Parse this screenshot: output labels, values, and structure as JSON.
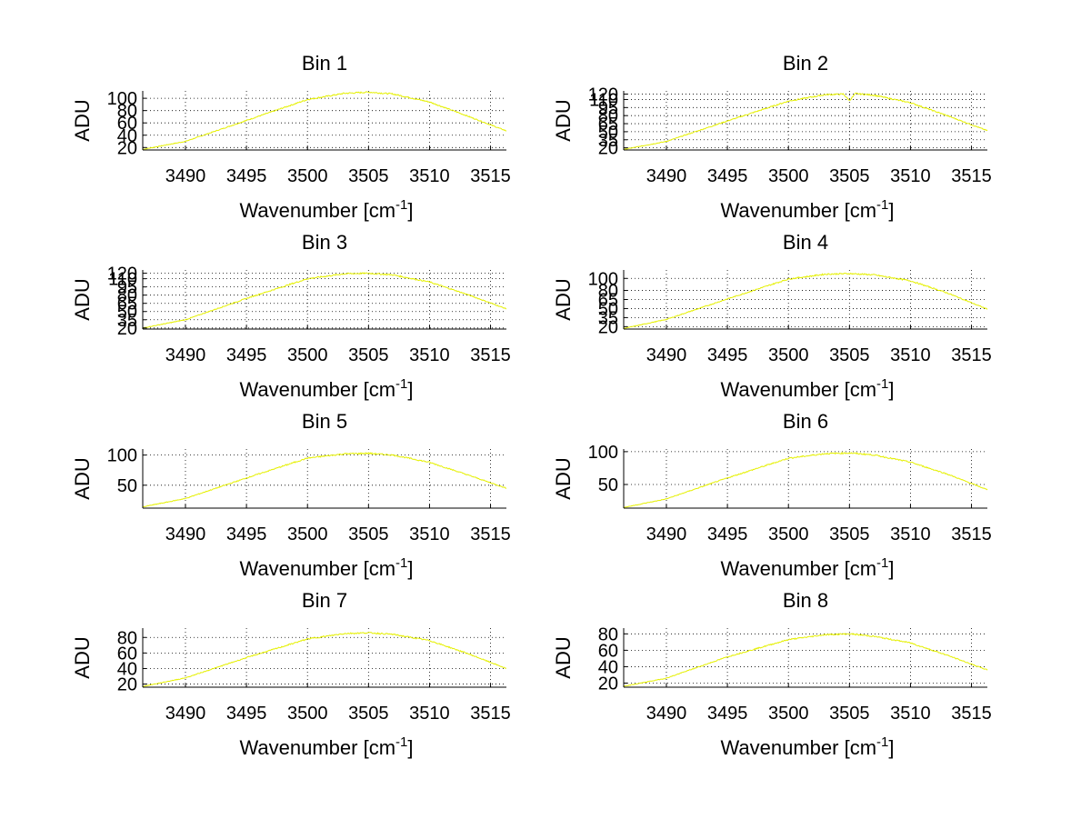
{
  "chart_data": [
    {
      "type": "line",
      "title": "Bin 1",
      "xlabel": "Wavenumber [cm",
      "xlabel_sup": "-1",
      "xlabel_end": "]",
      "ylabel": "ADU",
      "xlim": [
        3486.5,
        3516.3
      ],
      "ylim": [
        16,
        112
      ],
      "xticks": [
        3490,
        3495,
        3500,
        3505,
        3510,
        3515
      ],
      "yticks": [
        20,
        40,
        60,
        80,
        100
      ],
      "series": [
        {
          "x": [
            3486.5,
            3490,
            3495,
            3500,
            3503,
            3505,
            3507,
            3510,
            3513,
            3516.3
          ],
          "y": [
            17,
            30,
            64,
            98,
            108,
            110,
            107,
            94,
            72,
            47
          ]
        }
      ]
    },
    {
      "type": "line",
      "title": "Bin 2",
      "xlabel": "Wavenumber [cm",
      "xlabel_sup": "-1",
      "xlabel_end": "]",
      "ylabel": "ADU",
      "xlim": [
        3486.5,
        3516.3
      ],
      "ylim": [
        16,
        126
      ],
      "xticks": [
        3490,
        3495,
        3500,
        3505,
        3510,
        3515
      ],
      "yticks": [
        20,
        35,
        50,
        65,
        80,
        95,
        110,
        120
      ],
      "series": [
        {
          "x": [
            3486.5,
            3490,
            3495,
            3500,
            3503,
            3504.5,
            3505,
            3505.5,
            3507,
            3510,
            3513,
            3516.3
          ],
          "y": [
            17,
            32,
            70,
            107,
            119,
            120,
            108,
            121,
            118,
            104,
            80,
            52
          ]
        }
      ]
    },
    {
      "type": "line",
      "title": "Bin 3",
      "xlabel": "Wavenumber [cm",
      "xlabel_sup": "-1",
      "xlabel_end": "]",
      "ylabel": "ADU",
      "xlim": [
        3486.5,
        3516.3
      ],
      "ylim": [
        18,
        126
      ],
      "xticks": [
        3490,
        3495,
        3500,
        3505,
        3510,
        3515
      ],
      "yticks": [
        20,
        35,
        50,
        65,
        80,
        95,
        110,
        120
      ],
      "series": [
        {
          "x": [
            3486.5,
            3490,
            3495,
            3500,
            3503,
            3505,
            3507,
            3510,
            3513,
            3516.3
          ],
          "y": [
            20,
            35,
            74,
            110,
            119,
            120,
            117,
            104,
            82,
            55
          ]
        }
      ]
    },
    {
      "type": "line",
      "title": "Bin 4",
      "xlabel": "Wavenumber [cm",
      "xlabel_sup": "-1",
      "xlabel_end": "]",
      "ylabel": "ADU",
      "xlim": [
        3486.5,
        3516.3
      ],
      "ylim": [
        16,
        114
      ],
      "xticks": [
        3490,
        3495,
        3500,
        3505,
        3510,
        3515
      ],
      "yticks": [
        20,
        35,
        50,
        65,
        80,
        100
      ],
      "series": [
        {
          "x": [
            3486.5,
            3490,
            3495,
            3500,
            3503,
            3505,
            3507,
            3510,
            3513,
            3516.3
          ],
          "y": [
            17,
            32,
            66,
            99,
            107,
            108,
            106,
            96,
            76,
            49
          ]
        }
      ]
    },
    {
      "type": "line",
      "title": "Bin 5",
      "xlabel": "Wavenumber [cm",
      "xlabel_sup": "-1",
      "xlabel_end": "]",
      "ylabel": "ADU",
      "xlim": [
        3486.5,
        3516.3
      ],
      "ylim": [
        12,
        110
      ],
      "xticks": [
        3490,
        3495,
        3500,
        3505,
        3510,
        3515
      ],
      "yticks": [
        50,
        100
      ],
      "series": [
        {
          "x": [
            3486.5,
            3490,
            3495,
            3500,
            3503,
            3505,
            3507,
            3510,
            3513,
            3516.3
          ],
          "y": [
            14,
            28,
            62,
            95,
            102,
            103,
            100,
            88,
            68,
            45
          ]
        }
      ]
    },
    {
      "type": "line",
      "title": "Bin 6",
      "xlabel": "Wavenumber [cm",
      "xlabel_sup": "-1",
      "xlabel_end": "]",
      "ylabel": "ADU",
      "xlim": [
        3486.5,
        3516.3
      ],
      "ylim": [
        14,
        104
      ],
      "xticks": [
        3490,
        3495,
        3500,
        3505,
        3510,
        3515
      ],
      "yticks": [
        50,
        100
      ],
      "series": [
        {
          "x": [
            3486.5,
            3490,
            3495,
            3500,
            3503,
            3505,
            3507,
            3510,
            3513,
            3516.3
          ],
          "y": [
            15,
            28,
            60,
            90,
            97,
            98,
            95,
            84,
            66,
            42
          ]
        }
      ]
    },
    {
      "type": "line",
      "title": "Bin 7",
      "xlabel": "Wavenumber [cm",
      "xlabel_sup": "-1",
      "xlabel_end": "]",
      "ylabel": "ADU",
      "xlim": [
        3486.5,
        3516.3
      ],
      "ylim": [
        16,
        92
      ],
      "xticks": [
        3490,
        3495,
        3500,
        3505,
        3510,
        3515
      ],
      "yticks": [
        20,
        40,
        60,
        80
      ],
      "series": [
        {
          "x": [
            3486.5,
            3490,
            3495,
            3500,
            3503,
            3505,
            3507,
            3510,
            3513,
            3516.3
          ],
          "y": [
            17,
            28,
            54,
            78,
            85,
            86,
            84,
            76,
            60,
            40
          ]
        }
      ]
    },
    {
      "type": "line",
      "title": "Bin 8",
      "xlabel": "Wavenumber [cm",
      "xlabel_sup": "-1",
      "xlabel_end": "]",
      "ylabel": "ADU",
      "xlim": [
        3486.5,
        3516.3
      ],
      "ylim": [
        15,
        87
      ],
      "xticks": [
        3490,
        3495,
        3500,
        3505,
        3510,
        3515
      ],
      "yticks": [
        20,
        40,
        60,
        80
      ],
      "series": [
        {
          "x": [
            3486.5,
            3490,
            3495,
            3500,
            3503,
            3505,
            3507,
            3510,
            3513,
            3516.3
          ],
          "y": [
            16,
            26,
            52,
            73,
            79,
            80,
            77,
            69,
            54,
            36
          ]
        }
      ]
    }
  ],
  "colors": {
    "curve": "#e5f000",
    "axis": "#000000",
    "background": "#ffffff"
  }
}
